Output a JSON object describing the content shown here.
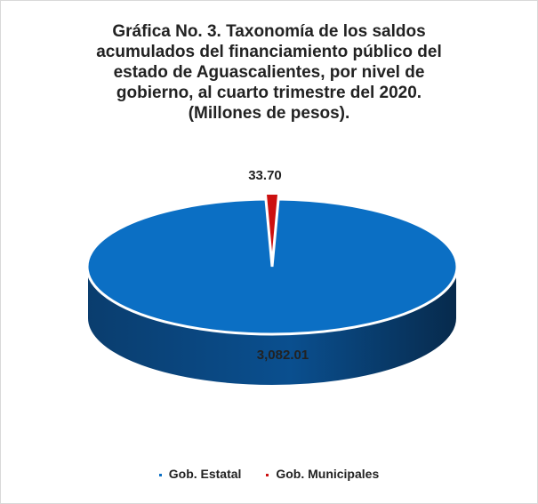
{
  "chart_data": {
    "type": "pie",
    "title_lines": [
      "Gráfica No. 3. Taxonomía de los saldos",
      "acumulados del financiamiento público del",
      "estado de Aguascalientes, por nivel de",
      "gobierno, al cuarto trimestre del 2020.",
      "(Millones de pesos)."
    ],
    "categories": [
      "Gob. Estatal",
      "Gob. Municipales"
    ],
    "values": [
      3082.01,
      33.7
    ],
    "value_labels": [
      "3,082.01",
      "33.70"
    ],
    "colors": [
      "#0b6fc4",
      "#cc1010"
    ],
    "legend_position": "bottom",
    "style": "3d-pie-exploded"
  }
}
